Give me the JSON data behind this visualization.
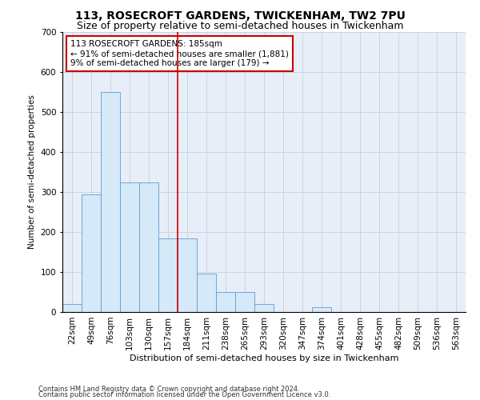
{
  "title": "113, ROSECROFT GARDENS, TWICKENHAM, TW2 7PU",
  "subtitle": "Size of property relative to semi-detached houses in Twickenham",
  "xlabel": "Distribution of semi-detached houses by size in Twickenham",
  "ylabel": "Number of semi-detached properties",
  "footnote1": "Contains HM Land Registry data © Crown copyright and database right 2024.",
  "footnote2": "Contains public sector information licensed under the Open Government Licence v3.0.",
  "categories": [
    "22sqm",
    "49sqm",
    "76sqm",
    "103sqm",
    "130sqm",
    "157sqm",
    "184sqm",
    "211sqm",
    "238sqm",
    "265sqm",
    "293sqm",
    "320sqm",
    "347sqm",
    "374sqm",
    "401sqm",
    "428sqm",
    "455sqm",
    "482sqm",
    "509sqm",
    "536sqm",
    "563sqm"
  ],
  "bar_values": [
    20,
    295,
    550,
    325,
    325,
    185,
    185,
    97,
    50,
    50,
    20,
    0,
    0,
    12,
    0,
    0,
    0,
    0,
    0,
    0,
    0
  ],
  "bar_color": "#d6e9f8",
  "bar_edge_color": "#5b9bd5",
  "grid_color": "#c8d4e4",
  "background_color": "#e8eef8",
  "property_line_color": "#cc0000",
  "property_line_index": 6,
  "annotation_text": "113 ROSECROFT GARDENS: 185sqm\n← 91% of semi-detached houses are smaller (1,881)\n9% of semi-detached houses are larger (179) →",
  "annotation_box_color": "#cc0000",
  "ylim": [
    0,
    700
  ],
  "yticks": [
    0,
    100,
    200,
    300,
    400,
    500,
    600,
    700
  ],
  "title_fontsize": 10,
  "subtitle_fontsize": 9,
  "xlabel_fontsize": 8,
  "ylabel_fontsize": 7.5,
  "tick_fontsize": 7.5,
  "annotation_fontsize": 7.5,
  "footnote_fontsize": 6
}
